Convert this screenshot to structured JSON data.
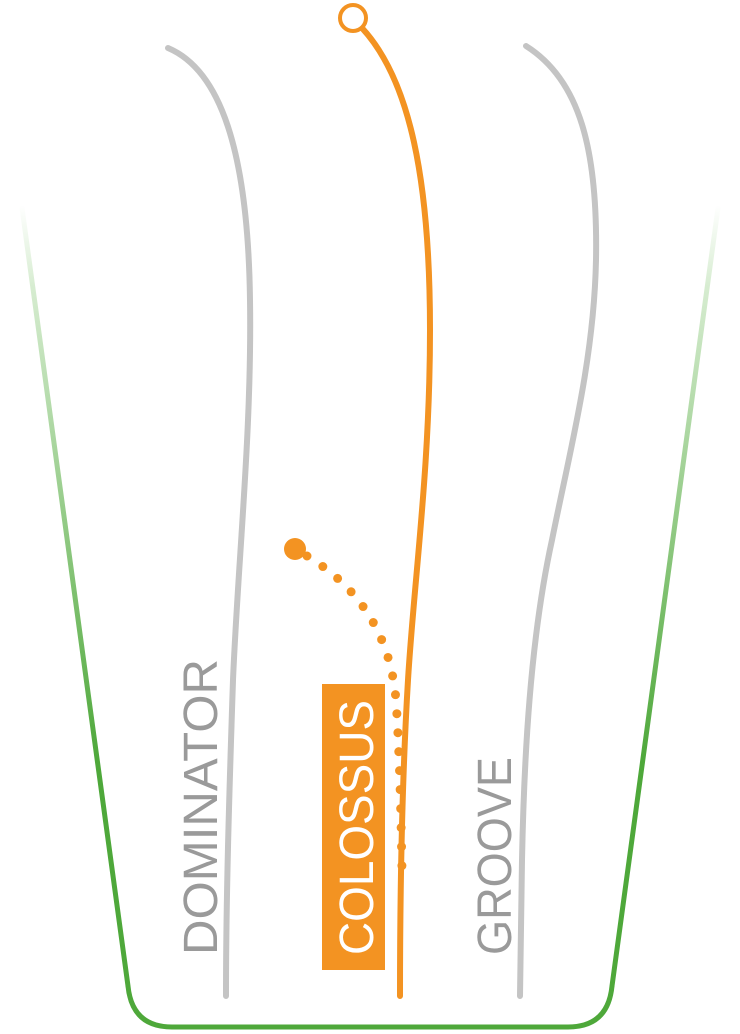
{
  "colors": {
    "track_outline": "#4ea83a",
    "track_fade": "#d6ecd0",
    "inactive_line": "#c4c4c4",
    "active_line": "#f39322",
    "inactive_label": "#9a9a9a",
    "active_label_bg": "#f39322",
    "active_label_text": "#ffffff"
  },
  "lines": [
    {
      "id": "dominator",
      "label": "DOMINATOR",
      "active": false
    },
    {
      "id": "colossus",
      "label": "COLOSSUS",
      "active": true
    },
    {
      "id": "groove",
      "label": "GROOVE",
      "active": false
    }
  ]
}
